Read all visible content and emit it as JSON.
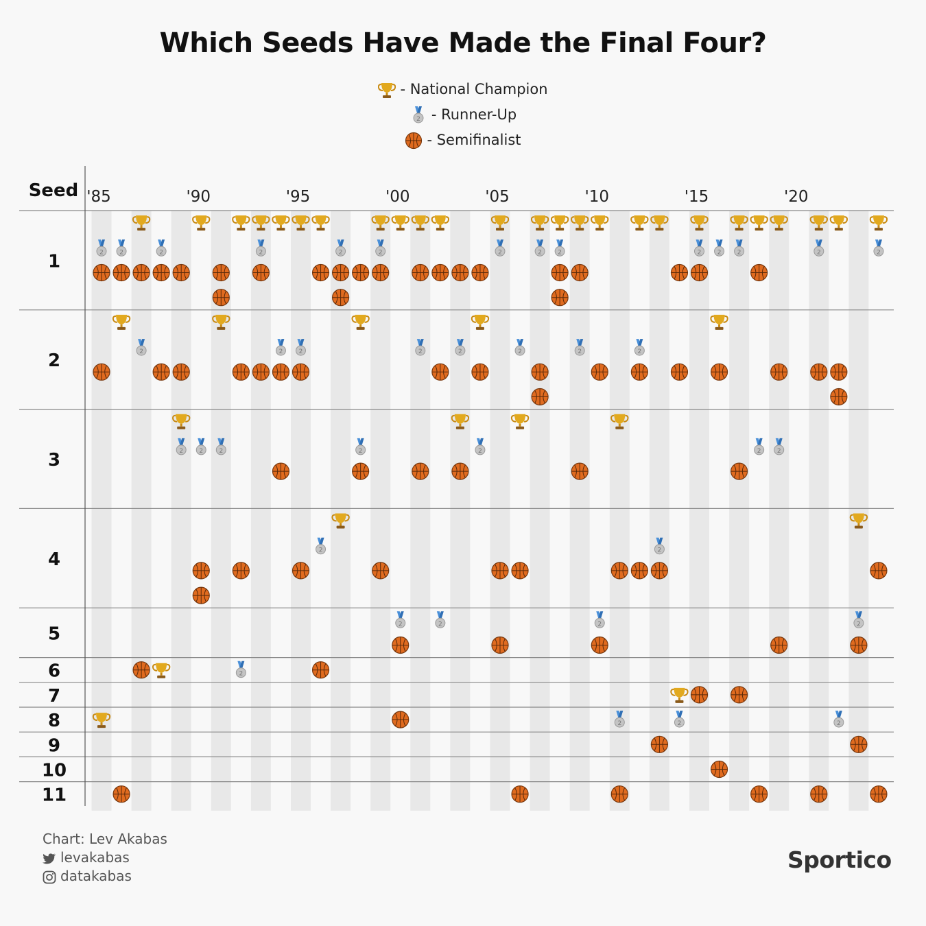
{
  "title": "Which Seeds Have Made the Final Four?",
  "legend": {
    "champion": "- National Champion",
    "runner_up": "- Runner-Up",
    "semifinalist": "- Semifinalist"
  },
  "y_axis_label": "Seed",
  "credits": {
    "chart_by": "Chart: Lev Akabas",
    "twitter": "levakabas",
    "instagram": "datakabas"
  },
  "brand": "Sportico",
  "colors": {
    "background": "#f8f8f8",
    "stripe": "#e8e8e8",
    "gold": "#e2a91e",
    "silver": "#c4c4c4",
    "ribbon": "#4a90d9",
    "basketball": "#e06b1f"
  },
  "icons": {
    "champion": "trophy-icon",
    "runner_up": "silver-medal-icon",
    "semifinalist": "basketball-icon"
  },
  "chart_data": {
    "type": "scatter",
    "title": "Which Seeds Have Made the Final Four?",
    "x_tick_labels": [
      "'85",
      "'90",
      "'95",
      "'00",
      "'05",
      "'10",
      "'15",
      "'20"
    ],
    "x_ticks": [
      1985,
      1990,
      1995,
      2000,
      2005,
      2010,
      2015,
      2020
    ],
    "x_range": [
      1985,
      2024
    ],
    "missing_years": [
      2020
    ],
    "seeds": [
      1,
      2,
      3,
      4,
      5,
      6,
      7,
      8,
      9,
      10,
      11
    ],
    "champion": [
      {
        "year": 1985,
        "seed": 8
      },
      {
        "year": 1986,
        "seed": 2
      },
      {
        "year": 1987,
        "seed": 1
      },
      {
        "year": 1988,
        "seed": 6
      },
      {
        "year": 1989,
        "seed": 3
      },
      {
        "year": 1990,
        "seed": 1
      },
      {
        "year": 1991,
        "seed": 2
      },
      {
        "year": 1992,
        "seed": 1
      },
      {
        "year": 1993,
        "seed": 1
      },
      {
        "year": 1994,
        "seed": 1
      },
      {
        "year": 1995,
        "seed": 1
      },
      {
        "year": 1996,
        "seed": 1
      },
      {
        "year": 1997,
        "seed": 4
      },
      {
        "year": 1998,
        "seed": 2
      },
      {
        "year": 1999,
        "seed": 1
      },
      {
        "year": 2000,
        "seed": 1
      },
      {
        "year": 2001,
        "seed": 1
      },
      {
        "year": 2002,
        "seed": 1
      },
      {
        "year": 2003,
        "seed": 3
      },
      {
        "year": 2004,
        "seed": 2
      },
      {
        "year": 2005,
        "seed": 1
      },
      {
        "year": 2006,
        "seed": 3
      },
      {
        "year": 2007,
        "seed": 1
      },
      {
        "year": 2008,
        "seed": 1
      },
      {
        "year": 2009,
        "seed": 1
      },
      {
        "year": 2010,
        "seed": 1
      },
      {
        "year": 2011,
        "seed": 3
      },
      {
        "year": 2012,
        "seed": 1
      },
      {
        "year": 2013,
        "seed": 1
      },
      {
        "year": 2014,
        "seed": 7
      },
      {
        "year": 2015,
        "seed": 1
      },
      {
        "year": 2016,
        "seed": 2
      },
      {
        "year": 2017,
        "seed": 1
      },
      {
        "year": 2018,
        "seed": 1
      },
      {
        "year": 2019,
        "seed": 1
      },
      {
        "year": 2021,
        "seed": 1
      },
      {
        "year": 2022,
        "seed": 1
      },
      {
        "year": 2023,
        "seed": 4
      },
      {
        "year": 2024,
        "seed": 1
      }
    ],
    "runner_up": [
      {
        "year": 1985,
        "seed": 1
      },
      {
        "year": 1986,
        "seed": 1
      },
      {
        "year": 1987,
        "seed": 2
      },
      {
        "year": 1988,
        "seed": 1
      },
      {
        "year": 1989,
        "seed": 3
      },
      {
        "year": 1990,
        "seed": 3
      },
      {
        "year": 1991,
        "seed": 3
      },
      {
        "year": 1992,
        "seed": 6
      },
      {
        "year": 1993,
        "seed": 1
      },
      {
        "year": 1994,
        "seed": 2
      },
      {
        "year": 1995,
        "seed": 2
      },
      {
        "year": 1996,
        "seed": 4
      },
      {
        "year": 1997,
        "seed": 1
      },
      {
        "year": 1998,
        "seed": 3
      },
      {
        "year": 1999,
        "seed": 1
      },
      {
        "year": 2000,
        "seed": 5
      },
      {
        "year": 2001,
        "seed": 2
      },
      {
        "year": 2002,
        "seed": 5
      },
      {
        "year": 2003,
        "seed": 2
      },
      {
        "year": 2004,
        "seed": 3
      },
      {
        "year": 2005,
        "seed": 1
      },
      {
        "year": 2006,
        "seed": 2
      },
      {
        "year": 2007,
        "seed": 1
      },
      {
        "year": 2008,
        "seed": 1
      },
      {
        "year": 2009,
        "seed": 2
      },
      {
        "year": 2010,
        "seed": 5
      },
      {
        "year": 2011,
        "seed": 8
      },
      {
        "year": 2012,
        "seed": 2
      },
      {
        "year": 2013,
        "seed": 4
      },
      {
        "year": 2014,
        "seed": 8
      },
      {
        "year": 2015,
        "seed": 1
      },
      {
        "year": 2016,
        "seed": 1
      },
      {
        "year": 2017,
        "seed": 1
      },
      {
        "year": 2018,
        "seed": 3
      },
      {
        "year": 2019,
        "seed": 3
      },
      {
        "year": 2021,
        "seed": 1
      },
      {
        "year": 2022,
        "seed": 8
      },
      {
        "year": 2023,
        "seed": 5
      },
      {
        "year": 2024,
        "seed": 1
      }
    ],
    "semifinalist": [
      {
        "year": 1985,
        "seed": 1
      },
      {
        "year": 1985,
        "seed": 2
      },
      {
        "year": 1986,
        "seed": 1
      },
      {
        "year": 1986,
        "seed": 11
      },
      {
        "year": 1987,
        "seed": 1
      },
      {
        "year": 1987,
        "seed": 6
      },
      {
        "year": 1988,
        "seed": 1
      },
      {
        "year": 1988,
        "seed": 2
      },
      {
        "year": 1989,
        "seed": 1
      },
      {
        "year": 1989,
        "seed": 2
      },
      {
        "year": 1990,
        "seed": 4
      },
      {
        "year": 1990,
        "seed": 4
      },
      {
        "year": 1991,
        "seed": 1
      },
      {
        "year": 1991,
        "seed": 1
      },
      {
        "year": 1992,
        "seed": 2
      },
      {
        "year": 1992,
        "seed": 4
      },
      {
        "year": 1993,
        "seed": 1
      },
      {
        "year": 1993,
        "seed": 2
      },
      {
        "year": 1994,
        "seed": 2
      },
      {
        "year": 1994,
        "seed": 3
      },
      {
        "year": 1995,
        "seed": 2
      },
      {
        "year": 1995,
        "seed": 4
      },
      {
        "year": 1996,
        "seed": 1
      },
      {
        "year": 1996,
        "seed": 6
      },
      {
        "year": 1997,
        "seed": 1
      },
      {
        "year": 1997,
        "seed": 1
      },
      {
        "year": 1998,
        "seed": 1
      },
      {
        "year": 1998,
        "seed": 3
      },
      {
        "year": 1999,
        "seed": 1
      },
      {
        "year": 1999,
        "seed": 4
      },
      {
        "year": 2000,
        "seed": 8
      },
      {
        "year": 2000,
        "seed": 5
      },
      {
        "year": 2001,
        "seed": 1
      },
      {
        "year": 2001,
        "seed": 3
      },
      {
        "year": 2002,
        "seed": 1
      },
      {
        "year": 2002,
        "seed": 2
      },
      {
        "year": 2003,
        "seed": 1
      },
      {
        "year": 2003,
        "seed": 3
      },
      {
        "year": 2004,
        "seed": 1
      },
      {
        "year": 2004,
        "seed": 2
      },
      {
        "year": 2005,
        "seed": 4
      },
      {
        "year": 2005,
        "seed": 5
      },
      {
        "year": 2006,
        "seed": 4
      },
      {
        "year": 2006,
        "seed": 11
      },
      {
        "year": 2007,
        "seed": 2
      },
      {
        "year": 2007,
        "seed": 2
      },
      {
        "year": 2008,
        "seed": 1
      },
      {
        "year": 2008,
        "seed": 1
      },
      {
        "year": 2009,
        "seed": 1
      },
      {
        "year": 2009,
        "seed": 3
      },
      {
        "year": 2010,
        "seed": 2
      },
      {
        "year": 2010,
        "seed": 5
      },
      {
        "year": 2011,
        "seed": 4
      },
      {
        "year": 2011,
        "seed": 11
      },
      {
        "year": 2012,
        "seed": 2
      },
      {
        "year": 2012,
        "seed": 4
      },
      {
        "year": 2013,
        "seed": 4
      },
      {
        "year": 2013,
        "seed": 9
      },
      {
        "year": 2014,
        "seed": 1
      },
      {
        "year": 2014,
        "seed": 2
      },
      {
        "year": 2015,
        "seed": 1
      },
      {
        "year": 2015,
        "seed": 7
      },
      {
        "year": 2016,
        "seed": 2
      },
      {
        "year": 2016,
        "seed": 10
      },
      {
        "year": 2017,
        "seed": 3
      },
      {
        "year": 2017,
        "seed": 7
      },
      {
        "year": 2018,
        "seed": 1
      },
      {
        "year": 2018,
        "seed": 11
      },
      {
        "year": 2019,
        "seed": 2
      },
      {
        "year": 2019,
        "seed": 5
      },
      {
        "year": 2021,
        "seed": 2
      },
      {
        "year": 2021,
        "seed": 11
      },
      {
        "year": 2022,
        "seed": 2
      },
      {
        "year": 2022,
        "seed": 2
      },
      {
        "year": 2023,
        "seed": 5
      },
      {
        "year": 2023,
        "seed": 9
      },
      {
        "year": 2024,
        "seed": 4
      },
      {
        "year": 2024,
        "seed": 11
      }
    ]
  }
}
